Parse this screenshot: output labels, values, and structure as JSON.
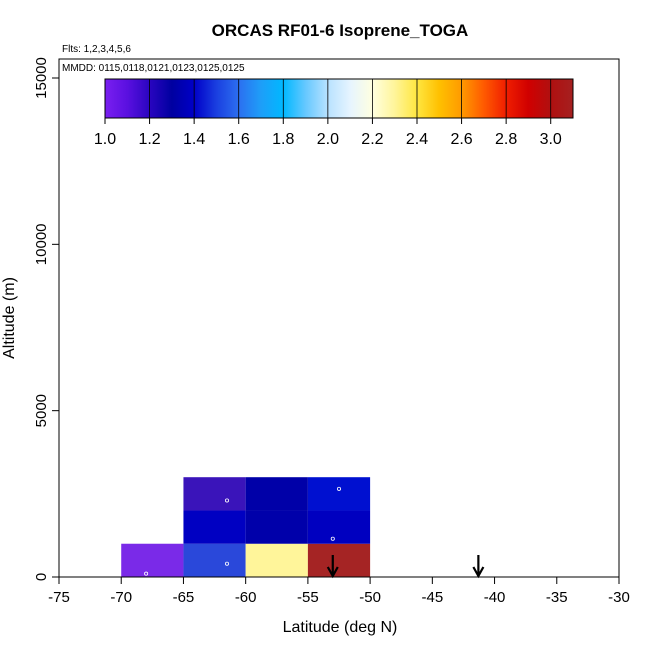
{
  "chart_data": {
    "type": "heatmap",
    "title": "ORCAS RF01-6 Isoprene_TOGA",
    "subtitle_flights": "Flts: 1,2,3,4,5,6",
    "subtitle_dates": "MMDD: 0115,0118,0121,0123,0125,0125",
    "xlabel": "Latitude (deg N)",
    "ylabel": "Altitude (m)",
    "xlim": [
      -75,
      -30
    ],
    "ylim": [
      0,
      15000
    ],
    "x_ticks": [
      "-75",
      "-70",
      "-65",
      "-60",
      "-55",
      "-50",
      "-45",
      "-40",
      "-35",
      "-30"
    ],
    "y_ticks": [
      "0",
      "5000",
      "10000",
      "15000"
    ],
    "colorbar": {
      "range": [
        1.0,
        3.1
      ],
      "ticks": [
        "1.0",
        "1.2",
        "1.4",
        "1.6",
        "1.8",
        "2.0",
        "2.2",
        "2.4",
        "2.6",
        "2.8",
        "3.0"
      ],
      "colors": [
        "#7A1FF0",
        "#5A10E0",
        "#2A05C0",
        "#0000A0",
        "#0000C8",
        "#1A3FE0",
        "#2C6FF0",
        "#1E9EF8",
        "#00B8FF",
        "#66C8FF",
        "#B8E2FF",
        "#E6F4FF",
        "#FFFFE0",
        "#FFF59A",
        "#FFE640",
        "#FFC000",
        "#FF9A00",
        "#FF5A00",
        "#F01E00",
        "#D00000",
        "#B01010",
        "#A52020"
      ]
    },
    "cells": [
      {
        "lat": -70,
        "alt": 0,
        "value": 1.05,
        "color": "#7A2AE8"
      },
      {
        "lat": -65,
        "alt": 0,
        "value": 1.55,
        "color": "#2A48DA"
      },
      {
        "lat": -60,
        "alt": 0,
        "value": 2.3,
        "color": "#FFF59A"
      },
      {
        "lat": -55,
        "alt": 0,
        "value": 3.05,
        "color": "#A52424"
      },
      {
        "lat": -65,
        "alt": 1000,
        "value": 1.3,
        "color": "#0000C2"
      },
      {
        "lat": -60,
        "alt": 1000,
        "value": 1.2,
        "color": "#0000AA"
      },
      {
        "lat": -55,
        "alt": 1000,
        "value": 1.3,
        "color": "#0000C0"
      },
      {
        "lat": -65,
        "alt": 2000,
        "value": 1.15,
        "color": "#3A14BA"
      },
      {
        "lat": -60,
        "alt": 2000,
        "value": 1.2,
        "color": "#0000A8"
      },
      {
        "lat": -55,
        "alt": 2000,
        "value": 1.35,
        "color": "#0010D0"
      }
    ],
    "cell_size": {
      "lat": 5,
      "alt": 1000
    },
    "sample_points": [
      {
        "lat": -68,
        "alt": 100
      },
      {
        "lat": -61.5,
        "alt": 400
      },
      {
        "lat": -61.5,
        "alt": 2300
      },
      {
        "lat": -53,
        "alt": 1150
      },
      {
        "lat": -52.5,
        "alt": 2650
      }
    ],
    "arrows": [
      {
        "lat": -53.0
      },
      {
        "lat": -41.3
      }
    ]
  }
}
